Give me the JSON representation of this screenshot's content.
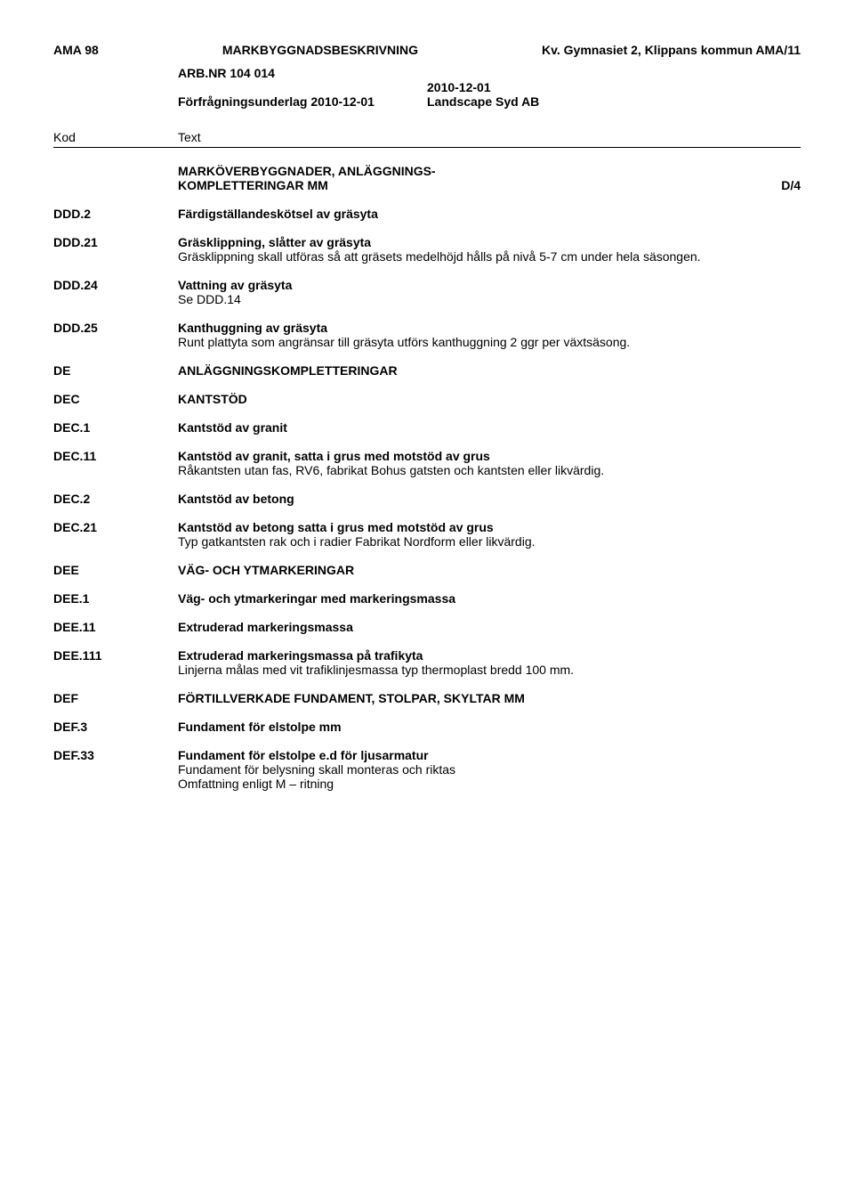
{
  "header": {
    "left": "AMA 98",
    "center": "MARKBYGGNADSBESKRIVNING",
    "right_prefix": "Kv. Gymnasiet 2, Klippans kommun  AMA/",
    "right_page": "11",
    "arb_nr": "ARB.NR 104 014",
    "date": "2010-12-01",
    "underlag": "Förfrågningsunderlag  2010-12-01",
    "company": "Landscape Syd AB"
  },
  "columns": {
    "kod": "Kod",
    "text": "Text"
  },
  "section_header": {
    "title_line1": "MARKÖVERBYGGNADER, ANLÄGGNINGS-",
    "title_line2": "KOMPLETTERINGAR MM",
    "right": "D/4"
  },
  "entries": [
    {
      "code": "DDD.2",
      "title": "Färdigställandeskötsel av gräsyta"
    },
    {
      "code": "DDD.21",
      "title": "Gräsklippning, slåtter av gräsyta",
      "text": "Gräsklippning skall utföras så att gräsets medelhöjd hålls på nivå 5-7 cm under hela säsongen."
    },
    {
      "code": "DDD.24",
      "title": "Vattning av gräsyta",
      "text": "Se DDD.14"
    },
    {
      "code": "DDD.25",
      "title": "Kanthuggning av gräsyta",
      "text": "Runt plattyta som angränsar till gräsyta utförs kanthuggning 2 ggr per växtsäsong."
    },
    {
      "code": "DE",
      "title": "ANLÄGGNINGSKOMPLETTERINGAR"
    },
    {
      "code": "DEC",
      "title": "KANTSTÖD"
    },
    {
      "code": "DEC.1",
      "title": "Kantstöd av granit"
    },
    {
      "code": "DEC.11",
      "title": "Kantstöd av granit, satta i grus med motstöd av grus",
      "text": "Råkantsten utan fas, RV6, fabrikat Bohus gatsten och kantsten eller likvärdig."
    },
    {
      "code": "DEC.2",
      "title": "Kantstöd av betong"
    },
    {
      "code": "DEC.21",
      "title": "Kantstöd av betong satta i grus med motstöd av grus",
      "text": "Typ gatkantsten rak och i radier Fabrikat Nordform eller likvärdig."
    },
    {
      "code": "DEE",
      "title": "VÄG- OCH YTMARKERINGAR"
    },
    {
      "code": "DEE.1",
      "title": "Väg- och ytmarkeringar med markeringsmassa"
    },
    {
      "code": "DEE.11",
      "title": "Extruderad markeringsmassa"
    },
    {
      "code": "DEE.111",
      "title": "Extruderad markeringsmassa på trafikyta",
      "text": "Linjerna målas med vit trafiklinjesmassa typ thermoplast bredd 100 mm."
    },
    {
      "code": "DEF",
      "title": "FÖRTILLVERKADE FUNDAMENT, STOLPAR, SKYLTAR MM"
    },
    {
      "code": "DEF.3",
      "title": "Fundament för elstolpe mm"
    },
    {
      "code": "DEF.33",
      "title": "Fundament för elstolpe e.d för ljusarmatur",
      "text": "Fundament för belysning skall monteras och riktas\nOmfattning enligt M – ritning"
    }
  ]
}
